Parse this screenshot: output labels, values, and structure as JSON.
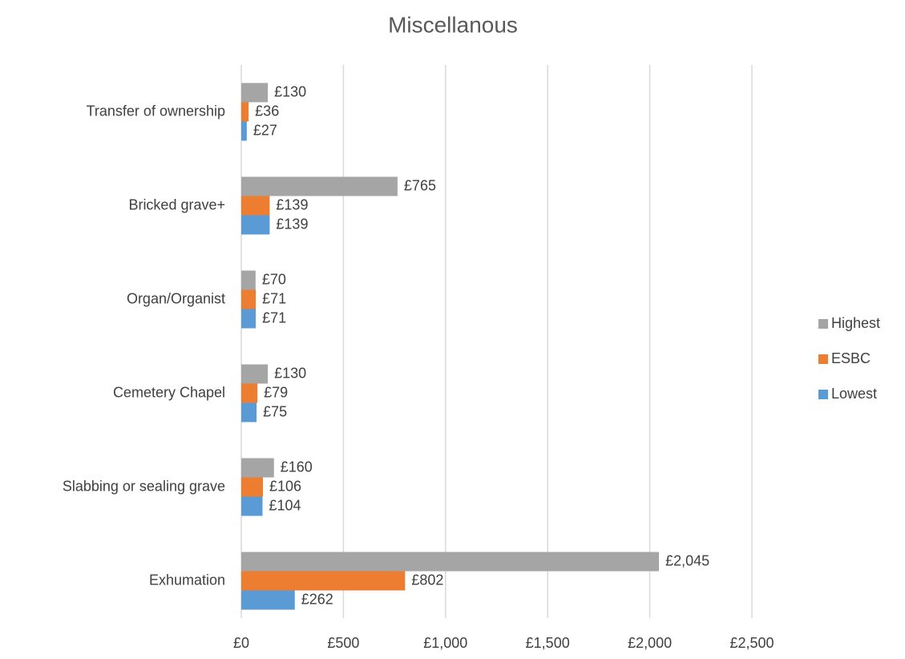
{
  "chart_data": {
    "type": "hbar",
    "title": "Miscellanous",
    "categories": [
      "Transfer of ownership",
      "Bricked grave+",
      "Organ/Organist",
      "Cemetery Chapel",
      "Slabbing or sealing grave",
      "Exhumation"
    ],
    "series": [
      {
        "name": "Highest",
        "color": "#a5a5a5",
        "values": [
          130,
          765,
          70,
          130,
          160,
          2045
        ],
        "value_labels": [
          "£130",
          "£765",
          "£70",
          "£130",
          "£160",
          "£2,045"
        ]
      },
      {
        "name": "ESBC",
        "color": "#ed7d31",
        "values": [
          36,
          139,
          71,
          79,
          106,
          802
        ],
        "value_labels": [
          "£36",
          "£139",
          "£71",
          "£79",
          "£106",
          "£802"
        ]
      },
      {
        "name": "Lowest",
        "color": "#5b9bd5",
        "values": [
          27,
          139,
          71,
          75,
          104,
          262
        ],
        "value_labels": [
          "£27",
          "£139",
          "£71",
          "£75",
          "£104",
          "£262"
        ]
      }
    ],
    "xlim": [
      0,
      2500
    ],
    "xticks": [
      {
        "value": 0,
        "label": "£0"
      },
      {
        "value": 500,
        "label": "£500"
      },
      {
        "value": 1000,
        "label": "£1,000"
      },
      {
        "value": 1500,
        "label": "£1,500"
      },
      {
        "value": 2000,
        "label": "£2,000"
      },
      {
        "value": 2500,
        "label": "£2,500"
      }
    ],
    "grid": true,
    "legend": "right"
  }
}
